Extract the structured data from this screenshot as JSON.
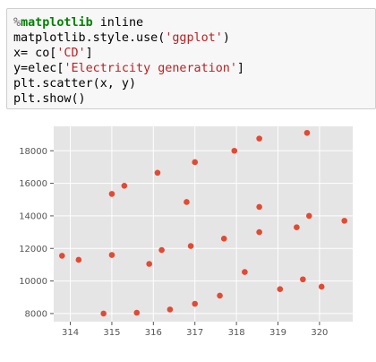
{
  "code_cell": {
    "lines": [
      [
        {
          "cls": "tok-op",
          "text": "%"
        },
        {
          "cls": "tok-kw",
          "text": "matplotlib"
        },
        {
          "cls": "tok-plain",
          "text": " inline"
        }
      ],
      [
        {
          "cls": "tok-plain",
          "text": "matplotlib.style.use("
        },
        {
          "cls": "tok-str",
          "text": "'ggplot'"
        },
        {
          "cls": "tok-plain",
          "text": ")"
        }
      ],
      [
        {
          "cls": "tok-plain",
          "text": "x= co["
        },
        {
          "cls": "tok-str",
          "text": "'CD'"
        },
        {
          "cls": "tok-plain",
          "text": "]"
        }
      ],
      [
        {
          "cls": "tok-plain",
          "text": "y=elec["
        },
        {
          "cls": "tok-str",
          "text": "'Electricity generation'"
        },
        {
          "cls": "tok-plain",
          "text": "]"
        }
      ],
      [
        {
          "cls": "tok-plain",
          "text": "plt.scatter(x, y)"
        }
      ],
      [
        {
          "cls": "tok-plain",
          "text": "plt.show()"
        }
      ]
    ]
  },
  "chart_data": {
    "type": "scatter",
    "title": "",
    "xlabel": "",
    "ylabel": "",
    "xlim": [
      313.6,
      320.8
    ],
    "ylim": [
      7500,
      19500
    ],
    "xticks": [
      314,
      315,
      316,
      317,
      318,
      319,
      320
    ],
    "yticks": [
      8000,
      10000,
      12000,
      14000,
      16000,
      18000
    ],
    "grid": true,
    "style": "ggplot",
    "colors": {
      "background": "#e5e5e5",
      "grid": "#ffffff",
      "marker": "#e24a33",
      "tick_text": "#555555"
    },
    "points": [
      {
        "x": 313.8,
        "y": 11550
      },
      {
        "x": 314.2,
        "y": 11300
      },
      {
        "x": 314.8,
        "y": 8000
      },
      {
        "x": 315.0,
        "y": 15350
      },
      {
        "x": 315.0,
        "y": 11600
      },
      {
        "x": 315.3,
        "y": 15850
      },
      {
        "x": 315.6,
        "y": 8050
      },
      {
        "x": 315.9,
        "y": 11050
      },
      {
        "x": 316.1,
        "y": 16650
      },
      {
        "x": 316.2,
        "y": 11900
      },
      {
        "x": 316.4,
        "y": 8250
      },
      {
        "x": 316.8,
        "y": 14850
      },
      {
        "x": 316.9,
        "y": 12150
      },
      {
        "x": 317.0,
        "y": 17300
      },
      {
        "x": 317.0,
        "y": 8600
      },
      {
        "x": 317.6,
        "y": 9100
      },
      {
        "x": 317.7,
        "y": 12600
      },
      {
        "x": 317.95,
        "y": 18000
      },
      {
        "x": 318.2,
        "y": 10550
      },
      {
        "x": 318.55,
        "y": 18750
      },
      {
        "x": 318.55,
        "y": 14550
      },
      {
        "x": 318.55,
        "y": 13000
      },
      {
        "x": 319.05,
        "y": 9500
      },
      {
        "x": 319.45,
        "y": 13300
      },
      {
        "x": 319.6,
        "y": 10100
      },
      {
        "x": 319.7,
        "y": 19100
      },
      {
        "x": 319.75,
        "y": 14000
      },
      {
        "x": 320.05,
        "y": 9650
      },
      {
        "x": 320.6,
        "y": 13700
      }
    ]
  }
}
